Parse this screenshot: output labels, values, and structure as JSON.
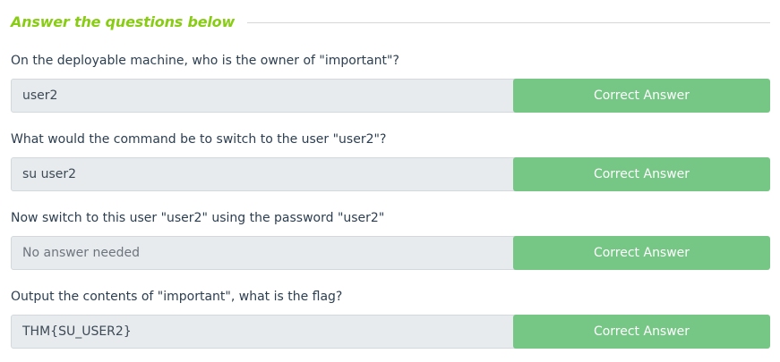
{
  "header": {
    "title": "Answer the questions below"
  },
  "questions": [
    {
      "text": "On the deployable machine, who is the owner of \"important\"?",
      "answer": "user2",
      "button": "Correct Answer"
    },
    {
      "text": "What would the command be to switch to the user \"user2\"?",
      "answer": "su user2",
      "button": "Correct Answer"
    },
    {
      "text": "Now switch to this user \"user2\" using the password \"user2\"",
      "answer": "No answer needed",
      "button": "Correct Answer"
    },
    {
      "text": "Output the contents of \"important\", what is the flag?",
      "answer": "THM{SU_USER2}",
      "button": "Correct Answer"
    }
  ],
  "colors": {
    "accent": "#88cc14",
    "button": "#76c785",
    "input_bg": "#e8ebee"
  }
}
